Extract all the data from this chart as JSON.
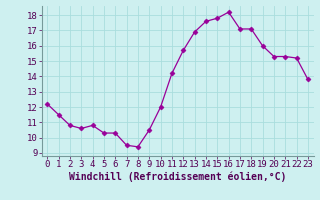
{
  "x": [
    0,
    1,
    2,
    3,
    4,
    5,
    6,
    7,
    8,
    9,
    10,
    11,
    12,
    13,
    14,
    15,
    16,
    17,
    18,
    19,
    20,
    21,
    22,
    23
  ],
  "y": [
    12.2,
    11.5,
    10.8,
    10.6,
    10.8,
    10.3,
    10.3,
    9.5,
    9.4,
    10.5,
    12.0,
    14.2,
    15.7,
    16.9,
    17.6,
    17.8,
    18.2,
    17.1,
    17.1,
    16.0,
    15.3,
    15.3,
    15.2,
    13.8
  ],
  "line_color": "#990099",
  "marker": "D",
  "marker_size": 2.5,
  "xlabel": "Windchill (Refroidissement éolien,°C)",
  "xlabel_fontsize": 7,
  "ylim": [
    8.8,
    18.6
  ],
  "xlim": [
    -0.5,
    23.5
  ],
  "yticks": [
    9,
    10,
    11,
    12,
    13,
    14,
    15,
    16,
    17,
    18
  ],
  "xticks": [
    0,
    1,
    2,
    3,
    4,
    5,
    6,
    7,
    8,
    9,
    10,
    11,
    12,
    13,
    14,
    15,
    16,
    17,
    18,
    19,
    20,
    21,
    22,
    23
  ],
  "background_color": "#cef0f0",
  "grid_color": "#aadddd",
  "tick_fontsize": 6.5
}
